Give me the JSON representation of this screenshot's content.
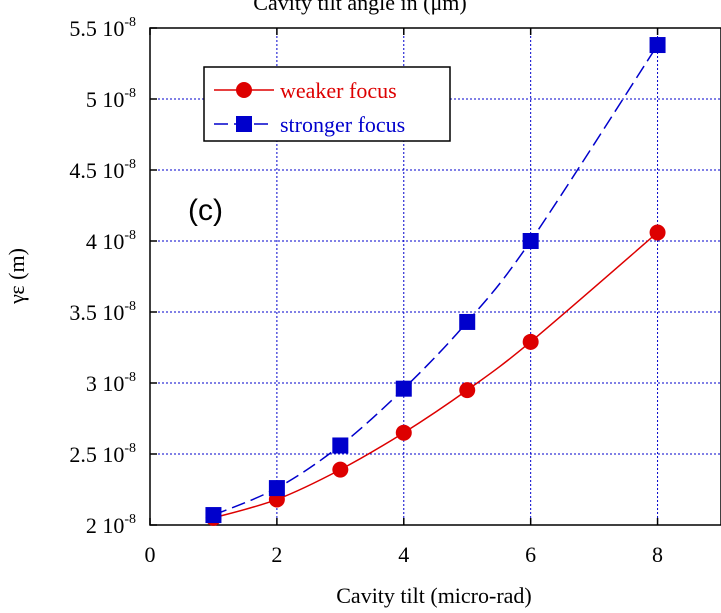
{
  "colors": {
    "series_1": "#dd0000",
    "series_2": "#0000cc",
    "grid": "#0000cc",
    "frame": "#000000"
  },
  "chart_data": {
    "type": "line",
    "title": "Cavity tilt angle in (μm)",
    "xlabel": "Cavity tilt (micro-rad)",
    "ylabel": "γε (m)",
    "panel_label": "(c)",
    "xlim": [
      0,
      9
    ],
    "ylim": [
      2e-08,
      5.5e-08
    ],
    "x_ticks": [
      0,
      2,
      4,
      6,
      8
    ],
    "x_tick_labels": [
      "0",
      "2",
      "4",
      "6",
      "8"
    ],
    "y_ticks": [
      2e-08,
      2.5e-08,
      3e-08,
      3.5e-08,
      4e-08,
      4.5e-08,
      5e-08,
      5.5e-08
    ],
    "y_tick_labels": [
      {
        "mantissa": "2 10",
        "exponent": "-8"
      },
      {
        "mantissa": "2.5 10",
        "exponent": "-8"
      },
      {
        "mantissa": "3 10",
        "exponent": "-8"
      },
      {
        "mantissa": "3.5 10",
        "exponent": "-8"
      },
      {
        "mantissa": "4 10",
        "exponent": "-8"
      },
      {
        "mantissa": "4.5 10",
        "exponent": "-8"
      },
      {
        "mantissa": "5 10",
        "exponent": "-8"
      },
      {
        "mantissa": "5.5 10",
        "exponent": "-8"
      }
    ],
    "grid": true,
    "legend_position": "top-left",
    "series": [
      {
        "name": "weaker focus",
        "marker": "circle",
        "line_style": "solid",
        "color": "#dd0000",
        "x": [
          1,
          2,
          3,
          4,
          5,
          6,
          8
        ],
        "y": [
          2.05e-08,
          2.18e-08,
          2.39e-08,
          2.65e-08,
          2.95e-08,
          3.29e-08,
          4.06e-08
        ]
      },
      {
        "name": "stronger focus",
        "marker": "square",
        "line_style": "dashed",
        "color": "#0000cc",
        "x": [
          1,
          2,
          3,
          4,
          5,
          6,
          8
        ],
        "y": [
          2.07e-08,
          2.26e-08,
          2.56e-08,
          2.96e-08,
          3.43e-08,
          4e-08,
          5.38e-08
        ]
      }
    ]
  }
}
